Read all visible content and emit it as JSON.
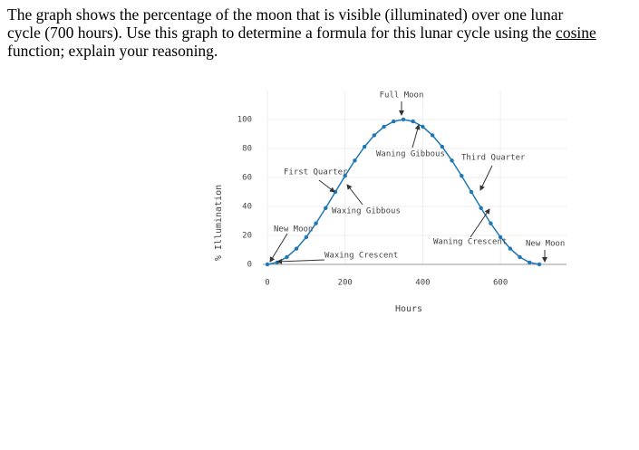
{
  "text": {
    "line1": "The graph shows the percentage of the moon that is visible (illuminated) over one lunar",
    "line2": "cycle (700 hours).  Use this graph to determine a formula for this lunar cycle using the",
    "underlined": "cosine",
    "line3": "function; explain your reasoning."
  },
  "chart_data": {
    "type": "line",
    "xlabel": "Hours",
    "ylabel": "% Illumination",
    "color": "#1f77b4",
    "x": [
      0,
      25,
      50,
      75,
      100,
      125,
      150,
      175,
      200,
      225,
      250,
      275,
      300,
      325,
      350,
      375,
      400,
      425,
      450,
      475,
      500,
      525,
      550,
      575,
      600,
      625,
      650,
      675,
      700
    ],
    "values": [
      0,
      1.3,
      5.0,
      10.9,
      18.8,
      28.3,
      38.9,
      50,
      61.1,
      71.7,
      81.2,
      89.1,
      95.0,
      98.7,
      100,
      98.7,
      95.0,
      89.1,
      81.2,
      71.7,
      61.1,
      50,
      38.9,
      28.3,
      18.8,
      10.9,
      5.0,
      1.3,
      0
    ],
    "xlim": [
      0,
      770
    ],
    "ylim": [
      0,
      120
    ],
    "xticks": [
      0,
      200,
      400,
      600
    ],
    "yticks": [
      0,
      20,
      40,
      60,
      80,
      100
    ],
    "grid": true,
    "annotations": [
      "Full Moon",
      "Waning Gibbous",
      "Third Quarter",
      "First Quarter",
      "Waxing Gibbous",
      "New Moon",
      "Waxing Crescent",
      "Waning Crescent",
      "New Moon"
    ]
  }
}
